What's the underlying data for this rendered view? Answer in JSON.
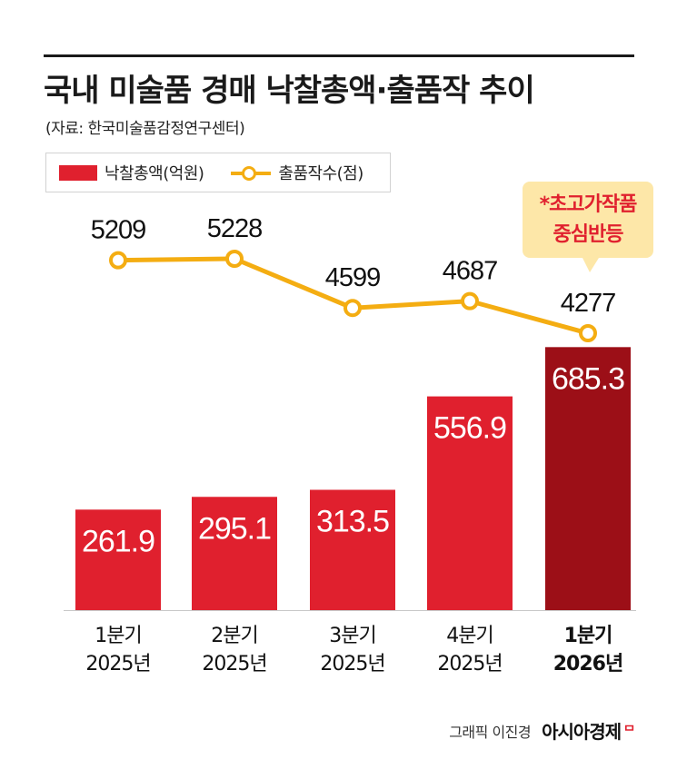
{
  "title": "국내 미술품 경매 낙찰총액·출품작 추이",
  "source": "(자료: 한국미술품감정연구센터)",
  "legend": {
    "bar_label": "낙찰총액(억원)",
    "line_label": "출품작수(점)"
  },
  "colors": {
    "bar": "#e0202e",
    "bar_highlight": "#9c0f17",
    "line": "#f4ad12",
    "callout_bg": "#fde7a8",
    "callout_text": "#e0202e"
  },
  "callout": {
    "line1": "*초고가작품",
    "line2": "중심반등"
  },
  "credit": {
    "text": "그래픽 이진경",
    "brand": "아시아경제",
    "mark": "ᄆ"
  },
  "chart_data": {
    "type": "bar",
    "categories": [
      [
        "1분기",
        "2025년"
      ],
      [
        "2분기",
        "2025년"
      ],
      [
        "3분기",
        "2025년"
      ],
      [
        "4분기",
        "2025년"
      ],
      [
        "1분기",
        "2026년"
      ]
    ],
    "highlight_index": 4,
    "series": [
      {
        "name": "낙찰총액(억원)",
        "type": "bar",
        "values": [
          261.9,
          295.1,
          313.5,
          556.9,
          685.3
        ]
      },
      {
        "name": "출품작수(점)",
        "type": "line",
        "values": [
          5209,
          5228,
          4599,
          4687,
          4277
        ]
      }
    ]
  }
}
